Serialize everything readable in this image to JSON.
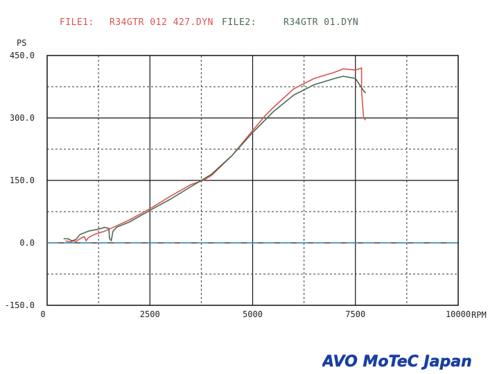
{
  "header": {
    "file1_label": "FILE1:",
    "file1_name": "R34GTR 012 427.DYN",
    "file2_label": "FILE2:",
    "file2_name": "R34GTR 01.DYN"
  },
  "logo": {
    "text": "AVO MoTeC Japan",
    "color": "#1a3fa0"
  },
  "chart_data": {
    "type": "line",
    "title": "",
    "xlabel": "RPM",
    "ylabel": "PS",
    "xlim": [
      0,
      10000
    ],
    "ylim": [
      -150,
      450
    ],
    "x_ticks": [
      0,
      2500,
      5000,
      7500,
      10000
    ],
    "x_tick_labels": [
      "0",
      "2500",
      "5000",
      "7500",
      "10000"
    ],
    "y_ticks": [
      -150,
      0,
      150,
      300,
      450
    ],
    "y_tick_labels": [
      "-150.0",
      "0.0",
      "150.0",
      "300.0",
      "450.0"
    ],
    "grid": true,
    "baseline": 0,
    "series": [
      {
        "name": "R34GTR 012 427.DYN",
        "color": "#d9534f",
        "x": [
          450,
          550,
          650,
          700,
          800,
          900,
          950,
          1000,
          1100,
          1200,
          1300,
          1400,
          1600,
          2000,
          2500,
          3000,
          3500,
          3800,
          4000,
          4500,
          5000,
          5300,
          5500,
          6000,
          6500,
          7000,
          7200,
          7500,
          7650,
          7650,
          7700,
          7750
        ],
        "y": [
          5,
          2,
          5,
          3,
          10,
          15,
          5,
          12,
          18,
          22,
          25,
          28,
          37,
          55,
          82,
          112,
          140,
          150,
          162,
          210,
          270,
          305,
          325,
          370,
          395,
          410,
          418,
          415,
          420,
          365,
          300,
          295
        ]
      },
      {
        "name": "R34GTR 01.DYN",
        "color": "#4a6a52",
        "x": [
          400,
          500,
          600,
          700,
          800,
          1000,
          1200,
          1400,
          1500,
          1520,
          1560,
          1600,
          1700,
          2000,
          2500,
          3000,
          3500,
          4000,
          4500,
          5000,
          5500,
          6000,
          6500,
          7000,
          7200,
          7500,
          7600,
          7700,
          7750
        ],
        "y": [
          10,
          10,
          5,
          8,
          20,
          28,
          32,
          37,
          35,
          10,
          5,
          28,
          38,
          50,
          78,
          105,
          135,
          165,
          210,
          265,
          315,
          355,
          380,
          395,
          400,
          395,
          380,
          365,
          360
        ]
      }
    ]
  }
}
